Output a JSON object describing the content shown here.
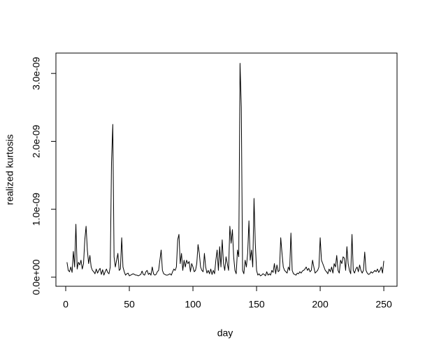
{
  "chart_data": {
    "type": "line",
    "xlabel": "day",
    "ylabel": "realized kurtosis",
    "color": "#000000",
    "xlim": [
      -7.7,
      260.4
    ],
    "ylim": [
      -1.34e-10,
      3.3e-09
    ],
    "xticks": [
      0,
      50,
      100,
      150,
      200,
      250
    ],
    "yticks": [
      {
        "value": 0,
        "label": "0.0e+00"
      },
      {
        "value": 1e-09,
        "label": "1.0e-09"
      },
      {
        "value": 2e-09,
        "label": "2.0e-09"
      },
      {
        "value": 3e-09,
        "label": "3.0e-09"
      }
    ],
    "x": [
      1,
      2,
      3,
      4,
      5,
      6,
      7,
      8,
      9,
      10,
      11,
      12,
      13,
      14,
      15,
      16,
      17,
      18,
      19,
      20,
      21,
      22,
      23,
      24,
      25,
      26,
      27,
      28,
      29,
      30,
      31,
      32,
      33,
      34,
      35,
      36,
      37,
      38,
      39,
      40,
      41,
      42,
      43,
      44,
      45,
      46,
      47,
      48,
      49,
      50,
      51,
      52,
      53,
      54,
      55,
      56,
      57,
      58,
      59,
      60,
      61,
      62,
      63,
      64,
      65,
      66,
      67,
      68,
      69,
      70,
      71,
      72,
      73,
      74,
      75,
      76,
      77,
      78,
      79,
      80,
      81,
      82,
      83,
      84,
      85,
      86,
      87,
      88,
      89,
      90,
      91,
      92,
      93,
      94,
      95,
      96,
      97,
      98,
      99,
      100,
      101,
      102,
      103,
      104,
      105,
      106,
      107,
      108,
      109,
      110,
      111,
      112,
      113,
      114,
      115,
      116,
      117,
      118,
      119,
      120,
      121,
      122,
      123,
      124,
      125,
      126,
      127,
      128,
      129,
      130,
      131,
      132,
      133,
      134,
      135,
      136,
      137,
      138,
      139,
      140,
      141,
      142,
      143,
      144,
      145,
      146,
      147,
      148,
      149,
      150,
      151,
      152,
      153,
      154,
      155,
      156,
      157,
      158,
      159,
      160,
      161,
      162,
      163,
      164,
      165,
      166,
      167,
      168,
      169,
      170,
      171,
      172,
      173,
      174,
      175,
      176,
      177,
      178,
      179,
      180,
      181,
      182,
      183,
      184,
      185,
      186,
      187,
      188,
      189,
      190,
      191,
      192,
      193,
      194,
      195,
      196,
      197,
      198,
      199,
      200,
      201,
      202,
      203,
      204,
      205,
      206,
      207,
      208,
      209,
      210,
      211,
      212,
      213,
      214,
      215,
      216,
      217,
      218,
      219,
      220,
      221,
      222,
      223,
      224,
      225,
      226,
      227,
      228,
      229,
      230,
      231,
      232,
      233,
      234,
      235,
      236,
      237,
      238,
      239,
      240,
      241,
      242,
      243,
      244,
      245,
      246,
      247,
      248,
      249,
      250
    ],
    "values": [
      2.2e-10,
      1e-10,
      8e-11,
      1.5e-10,
      7e-11,
      3.8e-10,
      1.5e-10,
      7.8e-10,
      1.2e-10,
      2.2e-10,
      1.8e-10,
      2.5e-10,
      1.2e-10,
      2e-10,
      5.5e-10,
      7.5e-10,
      4e-10,
      2e-10,
      3.2e-10,
      1.5e-10,
      1e-10,
      8e-11,
      5e-11,
      1.2e-10,
      6e-11,
      1e-10,
      1.3e-10,
      4e-11,
      1.1e-10,
      3e-11,
      8e-11,
      1.2e-10,
      7e-11,
      5e-11,
      1.5e-10,
      1.7e-09,
      2.25e-09,
      3e-10,
      1.5e-10,
      2.5e-10,
      3.5e-10,
      1e-10,
      1.2e-10,
      5.8e-10,
      1.5e-10,
      8e-11,
      3e-11,
      5e-11,
      6e-11,
      2e-11,
      3e-11,
      4e-11,
      5e-11,
      4e-11,
      3e-11,
      3e-11,
      2e-11,
      3e-11,
      4e-11,
      9e-11,
      4e-11,
      3e-11,
      8e-11,
      1e-10,
      4e-11,
      6e-11,
      3e-11,
      1.5e-10,
      5e-11,
      3e-11,
      4e-11,
      8e-11,
      1e-10,
      2.5e-10,
      4e-10,
      1e-10,
      5e-11,
      4e-11,
      3e-11,
      3e-11,
      4e-11,
      5e-11,
      3e-11,
      8e-11,
      1.2e-10,
      1e-10,
      1.5e-10,
      5.5e-10,
      6.3e-10,
      2e-10,
      3.5e-10,
      1e-10,
      2.5e-10,
      1.5e-10,
      2.5e-10,
      2e-10,
      2.3e-10,
      8e-11,
      2e-10,
      1.5e-10,
      8e-11,
      1e-10,
      2e-10,
      4.8e-10,
      3.5e-10,
      1.5e-10,
      1e-10,
      8e-11,
      3.5e-10,
      1.5e-10,
      6e-11,
      1e-10,
      5e-11,
      1.2e-10,
      4e-11,
      1e-10,
      5e-11,
      2.5e-10,
      4e-10,
      1e-10,
      4.5e-10,
      1.5e-10,
      5.5e-10,
      2e-10,
      1e-10,
      3e-10,
      2e-10,
      1e-10,
      7.5e-10,
      5e-10,
      7e-10,
      3e-10,
      1e-10,
      5e-11,
      4e-10,
      3e-10,
      3.15e-09,
      2.5e-09,
      1e-10,
      5e-11,
      2.5e-10,
      1.5e-10,
      3.5e-10,
      8.3e-10,
      2.5e-10,
      4e-10,
      1.5e-10,
      1.16e-09,
      5e-10,
      1e-10,
      3e-11,
      5e-11,
      2e-11,
      3e-11,
      5e-11,
      4e-11,
      2e-11,
      8e-11,
      3e-11,
      5e-11,
      3e-11,
      1e-10,
      7e-11,
      2e-10,
      5e-11,
      1.8e-10,
      8e-11,
      1e-10,
      5.8e-10,
      3.5e-10,
      1.5e-10,
      1e-10,
      8e-11,
      6e-11,
      1.5e-10,
      1e-10,
      6.5e-10,
      1e-10,
      5e-11,
      4e-11,
      3e-11,
      6e-11,
      5e-11,
      8e-11,
      6e-11,
      9e-11,
      1e-10,
      1.2e-10,
      1.5e-10,
      1e-10,
      1.3e-10,
      8e-11,
      1e-10,
      2.5e-10,
      1.5e-10,
      6e-11,
      8e-11,
      1e-10,
      1.5e-10,
      5.8e-10,
      2.5e-10,
      2e-10,
      1.5e-10,
      1e-10,
      8e-11,
      5e-11,
      1.2e-10,
      8e-11,
      1.5e-10,
      6e-11,
      2e-10,
      1.5e-10,
      3.2e-10,
      1e-10,
      6e-11,
      2.5e-10,
      2e-10,
      3e-10,
      2.8e-10,
      1e-10,
      4.5e-10,
      2e-10,
      1e-10,
      5e-11,
      6.3e-10,
      1e-10,
      6e-11,
      1.2e-10,
      1.5e-10,
      8e-11,
      1.8e-10,
      1e-10,
      6e-11,
      1e-10,
      3.7e-10,
      1e-10,
      6e-11,
      4e-11,
      5e-11,
      8e-11,
      6e-11,
      8e-11,
      1e-10,
      8e-11,
      1.2e-10,
      7e-11,
      1e-10,
      1.5e-10,
      6e-11,
      2.4e-10
    ]
  }
}
